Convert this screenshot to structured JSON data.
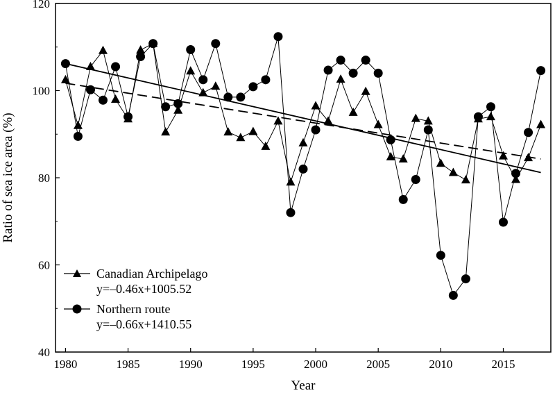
{
  "chart_data": {
    "type": "line",
    "xlabel": "Year",
    "ylabel": "Ratio of sea ice area (%)",
    "xlim": [
      1979.2,
      2018.8
    ],
    "ylim": [
      40,
      120
    ],
    "xticks": [
      1980,
      1985,
      1990,
      1995,
      2000,
      2005,
      2010,
      2015
    ],
    "yticks": [
      40,
      60,
      80,
      100,
      120
    ],
    "grid": false,
    "legend_position": "bottom-left",
    "series": [
      {
        "name": "Canadian Archipelago",
        "marker": "triangle",
        "equation": "y=–0.46x+1005.52",
        "trend_style": "dashed",
        "trend": {
          "x": [
            1980,
            2018
          ],
          "y": [
            101.7,
            84.3
          ]
        },
        "x": [
          1980,
          1981,
          1982,
          1983,
          1984,
          1985,
          1986,
          1987,
          1988,
          1989,
          1990,
          1991,
          1992,
          1993,
          1994,
          1995,
          1996,
          1997,
          1998,
          1999,
          2000,
          2001,
          2002,
          2003,
          2004,
          2005,
          2006,
          2007,
          2008,
          2009,
          2010,
          2011,
          2012,
          2013,
          2014,
          2015,
          2016,
          2017,
          2018
        ],
        "values": [
          102.5,
          92,
          105.5,
          109.2,
          98,
          93.5,
          109.3,
          110.8,
          90.5,
          95.5,
          104.5,
          99.5,
          101,
          90.5,
          89.2,
          90.6,
          87.2,
          93,
          79,
          88,
          96.5,
          93,
          102.6,
          95,
          99.8,
          92.2,
          84.8,
          84.3,
          93.6,
          93,
          83.3,
          81.2,
          79.5,
          93.5,
          94,
          85,
          79.6,
          84.6,
          92.2
        ]
      },
      {
        "name": "Northern route",
        "marker": "circle",
        "equation": "y=–0.66x+1410.55",
        "trend_style": "solid",
        "trend": {
          "x": [
            1980,
            2018
          ],
          "y": [
            106.2,
            81.2
          ]
        },
        "x": [
          1980,
          1981,
          1982,
          1983,
          1984,
          1985,
          1986,
          1987,
          1988,
          1989,
          1990,
          1991,
          1992,
          1993,
          1994,
          1995,
          1996,
          1997,
          1998,
          1999,
          2000,
          2001,
          2002,
          2003,
          2004,
          2005,
          2006,
          2007,
          2008,
          2009,
          2010,
          2011,
          2012,
          2013,
          2014,
          2015,
          2016,
          2017,
          2018
        ],
        "values": [
          106.2,
          89.5,
          100.2,
          97.8,
          105.5,
          94,
          107.8,
          110.8,
          96.3,
          97,
          109.4,
          102.5,
          110.8,
          98.5,
          98.5,
          100.9,
          102.5,
          112.4,
          72,
          82,
          91,
          104.7,
          107,
          104,
          107,
          104,
          88.7,
          75,
          79.6,
          91,
          62.2,
          53,
          56.8,
          94,
          96.3,
          69.8,
          81,
          90.4,
          104.6
        ]
      }
    ]
  }
}
